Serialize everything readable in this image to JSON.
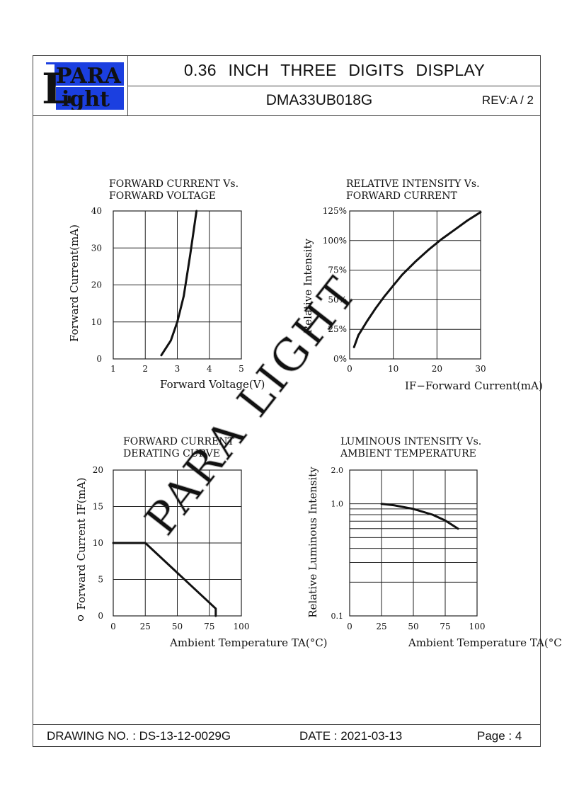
{
  "header": {
    "logo_top": "PARA",
    "logo_initial": "L",
    "logo_bottom": "ight",
    "title": "0.36 INCH THREE DIGITS DISPLAY",
    "part_number": "DMA33UB018G",
    "revision": "REV:A / 2"
  },
  "footer": {
    "drawing_no": "DRAWING NO. : DS-13-12-0029G",
    "date": "DATE : 2021-03-13",
    "page": "Page : 4"
  },
  "watermark": "PARA LIGHT",
  "colors": {
    "logo_blue": "#1b3fe0",
    "line": "#111111",
    "grid": "#222222"
  },
  "chart_data": [
    {
      "type": "line",
      "title": [
        "FORWARD  CURRENT  Vs.",
        "FORWARD  VOLTAGE"
      ],
      "xlabel": "Forward  Voltage(V)",
      "ylabel": "Forward  Current(mA)",
      "xlim": [
        1,
        5
      ],
      "ylim": [
        0,
        40
      ],
      "xticks": [
        "1",
        "2",
        "3",
        "4",
        "5"
      ],
      "yticks": [
        "0",
        "10",
        "20",
        "30",
        "40"
      ],
      "grid": true,
      "series": [
        {
          "x": [
            2.5,
            2.8,
            3.0,
            3.2,
            3.4,
            3.6
          ],
          "y": [
            1,
            5,
            10,
            17,
            28,
            40
          ]
        }
      ]
    },
    {
      "type": "line",
      "title": [
        "RELATIVE  INTENSITY  Vs.",
        "FORWARD  CURRENT"
      ],
      "xlabel": "IF−Forward  Current(mA)",
      "ylabel": "Relative  Intensity",
      "xlim": [
        0,
        30
      ],
      "ylim": [
        0,
        125
      ],
      "xticks": [
        "0",
        "10",
        "20",
        "30"
      ],
      "yticks": [
        "0%",
        "25%",
        "50%",
        "75%",
        "100%",
        "125%"
      ],
      "grid": true,
      "series": [
        {
          "x": [
            1,
            2,
            4,
            6,
            8,
            10,
            12,
            15,
            18,
            21,
            24,
            27,
            30
          ],
          "y": [
            10,
            20,
            32,
            43,
            53,
            62,
            71,
            82,
            92,
            101,
            109,
            117,
            124
          ]
        }
      ]
    },
    {
      "type": "line",
      "title": [
        "FORWARD  CURRENT",
        "DERATING  CURVE"
      ],
      "xlabel": "Ambient  Temperature  TA(°C)",
      "ylabel": "Forward  Current  IF(mA)",
      "xlim": [
        0,
        100
      ],
      "ylim": [
        0,
        20
      ],
      "xticks": [
        "0",
        "25",
        "50",
        "75",
        "100"
      ],
      "yticks": [
        "0",
        "5",
        "10",
        "15",
        "20"
      ],
      "grid": true,
      "series": [
        {
          "x": [
            0,
            25,
            80,
            80
          ],
          "y": [
            10,
            10,
            1,
            0
          ]
        }
      ]
    },
    {
      "type": "line",
      "title": [
        "LUMINOUS  INTENSITY  Vs.",
        "AMBIENT  TEMPERATURE"
      ],
      "xlabel": "Ambient  Temperature  TA(°C)",
      "ylabel": "Relative  Luminous  Intensity",
      "xlim": [
        0,
        100
      ],
      "ylim": [
        0.1,
        2.0
      ],
      "yscale": "log",
      "xticks": [
        "0",
        "25",
        "50",
        "75",
        "100"
      ],
      "yticks": [
        "0.1",
        "1.0",
        "2.0"
      ],
      "grid": true,
      "series": [
        {
          "x": [
            25,
            35,
            50,
            65,
            75,
            85
          ],
          "y": [
            1.0,
            0.97,
            0.9,
            0.8,
            0.71,
            0.6
          ]
        }
      ]
    }
  ]
}
